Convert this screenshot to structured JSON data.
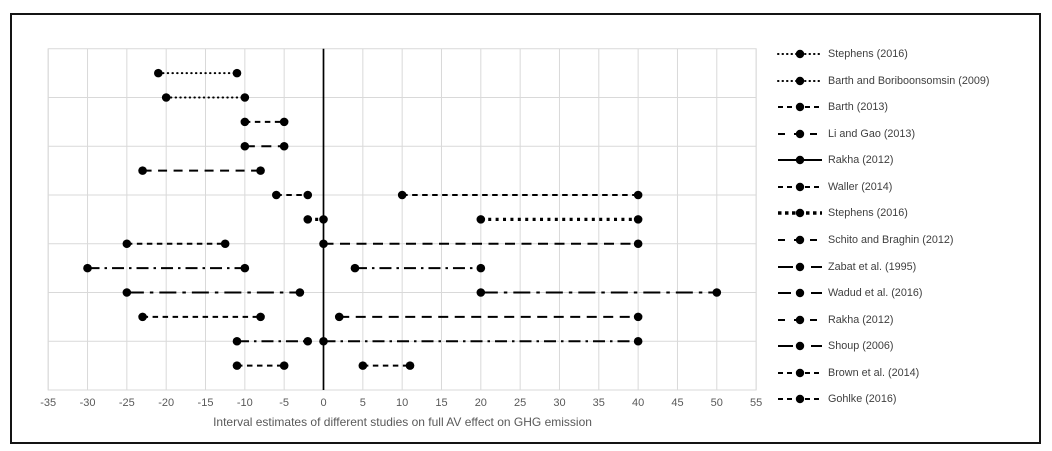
{
  "figure": {
    "background": "#ffffff",
    "border_color": "#141414",
    "line_color": "#000000",
    "grid_color": "#d9d9d9",
    "text_color": "#595959",
    "legend_text_color": "#3f3f3f"
  },
  "chart_data": {
    "type": "line",
    "subtype": "interval-dumbbell",
    "title": "",
    "xlabel": "Interval estimates of different studies on full AV effect on GHG emission",
    "ylabel": "",
    "xlim": [
      -35,
      55
    ],
    "ylim": [
      0,
      14
    ],
    "x_ticks": [
      -35,
      -30,
      -25,
      -20,
      -15,
      -10,
      -5,
      0,
      5,
      10,
      15,
      20,
      25,
      30,
      35,
      40,
      45,
      50,
      55
    ],
    "grid": "on",
    "legend_position": "right",
    "zero_axis_line": true,
    "rows_total": 13,
    "series": [
      {
        "name": "Stephens (2016)",
        "row": 1,
        "style": "dotted",
        "segments": [
          {
            "from": -21,
            "to": -11
          }
        ]
      },
      {
        "name": "Barth and Boriboonsomsin (2009)",
        "row": 2,
        "style": "dotted",
        "segments": [
          {
            "from": -20,
            "to": -10
          }
        ]
      },
      {
        "name": "Barth (2013)",
        "row": 3,
        "style": "dashed",
        "segments": [
          {
            "from": -10,
            "to": -5
          }
        ]
      },
      {
        "name": "Li and Gao (2013)",
        "row": 4,
        "style": "long-dash",
        "segments": [
          {
            "from": -10,
            "to": -5
          }
        ]
      },
      {
        "name": "Rakha (2012)",
        "row": 5,
        "style": "solid-long",
        "segments": [
          {
            "from": -23,
            "to": -8
          }
        ]
      },
      {
        "name": "Waller (2014)",
        "row": 6,
        "style": "dashed",
        "segments": [
          {
            "from": -6,
            "to": -2
          },
          {
            "from": 10,
            "to": 40
          }
        ]
      },
      {
        "name": "Stephens (2016)",
        "row": 7,
        "style": "bold-dotted",
        "segments": [
          {
            "from": -2,
            "to": 0
          },
          {
            "from": 20,
            "to": 40
          }
        ]
      },
      {
        "name": "Schito and Braghin (2012)",
        "row": 8,
        "style": "long-dash",
        "segments": [
          {
            "from": -25,
            "to": -12.5,
            "style": "dashed"
          },
          {
            "from": 0,
            "to": 40,
            "style": "long-dash"
          }
        ]
      },
      {
        "name": "Zabat et al. (1995)",
        "row": 9,
        "style": "dash-dot",
        "segments": [
          {
            "from": -30,
            "to": -10
          },
          {
            "from": 4,
            "to": 20
          }
        ]
      },
      {
        "name": "Wadud et al. (2016)",
        "row": 10,
        "style": "long-dash-dot",
        "segments": [
          {
            "from": -25,
            "to": -3
          },
          {
            "from": 20,
            "to": 50
          }
        ]
      },
      {
        "name": "Rakha (2012)",
        "row": 11,
        "style": "long-dash",
        "segments": [
          {
            "from": -23,
            "to": -8,
            "style": "dashed"
          },
          {
            "from": 2,
            "to": 40,
            "style": "long-dash"
          }
        ]
      },
      {
        "name": "Shoup (2006)",
        "row": 12,
        "style": "dash-dot",
        "segments": [
          {
            "from": -11,
            "to": -2
          },
          {
            "from": 0,
            "to": 40
          }
        ]
      },
      {
        "name": "Brown et al. (2014)",
        "row": 13,
        "style": "dashed",
        "segments": [
          {
            "from": -11,
            "to": -5
          }
        ]
      },
      {
        "name": "Gohlke (2016)",
        "row": 13,
        "style": "dashed",
        "segments": [
          {
            "from": 5,
            "to": 11
          }
        ]
      }
    ]
  }
}
